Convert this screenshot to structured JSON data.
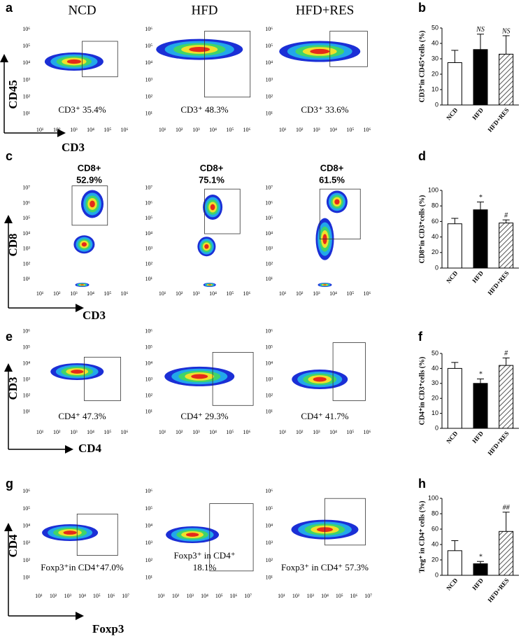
{
  "panels": [
    {
      "letter": "a",
      "groups": [
        "NCD",
        "HFD",
        "HFD+RES"
      ],
      "y_axis": "CD45",
      "x_axis": "CD3",
      "yticks": [
        "10¹",
        "10²",
        "10³",
        "10⁴",
        "10⁵",
        "10⁶"
      ],
      "xticks": [
        "10¹",
        "10²",
        "10³",
        "10⁴",
        "10⁵",
        "10⁶"
      ],
      "gates": [
        [
          "CD3⁺ 35.4%"
        ],
        [
          "CD3⁺ 48.3%"
        ],
        [
          "CD3⁺ 33.6%"
        ]
      ]
    },
    {
      "letter": "c",
      "y_axis": "CD8",
      "x_axis": "CD3",
      "yticks": [
        "10¹",
        "10²",
        "10³",
        "10⁴",
        "10⁵",
        "10⁶",
        "10⁷"
      ],
      "xticks": [
        "10¹",
        "10²",
        "10³",
        "10⁴",
        "10⁵",
        "10⁶"
      ],
      "gates": [
        [
          "CD8+",
          "52.9%"
        ],
        [
          "CD8+",
          "75.1%"
        ],
        [
          "CD8+",
          "61.5%"
        ]
      ]
    },
    {
      "letter": "e",
      "y_axis": "CD3",
      "x_axis": "CD4",
      "yticks": [
        "10¹",
        "10²",
        "10³",
        "10⁴",
        "10⁵",
        "10⁶"
      ],
      "xticks": [
        "10¹",
        "10²",
        "10³",
        "10⁴",
        "10⁵",
        "10⁶"
      ],
      "gates": [
        [
          "CD4⁺ 47.3%"
        ],
        [
          "CD4⁺ 29.3%"
        ],
        [
          "CD4⁺ 41.7%"
        ]
      ]
    },
    {
      "letter": "g",
      "y_axis": "CD4",
      "x_axis": "Foxp3",
      "yticks": [
        "10¹",
        "10²",
        "10³",
        "10⁴",
        "10⁵",
        "10⁶"
      ],
      "xticks": [
        "10¹",
        "10²",
        "10³",
        "10⁴",
        "10⁵",
        "10⁶",
        "10⁷"
      ],
      "gates": [
        [
          "Foxp3⁺in CD4⁺47.0%"
        ],
        [
          "Foxp3⁺ in CD4⁺",
          "18.1%"
        ],
        [
          "Foxp3⁺ in CD4⁺ 57.3%"
        ]
      ]
    }
  ],
  "chart_data": [
    {
      "type": "bar",
      "letter": "b",
      "ylabel": "CD3⁺in CD45⁺cells (%)",
      "categories": [
        "NCD",
        "HFD",
        "HFD+RES"
      ],
      "values": [
        27.5,
        36,
        33
      ],
      "errors": [
        8,
        10,
        12
      ],
      "annotations": [
        null,
        "NS",
        "NS"
      ],
      "colors": [
        "#ffffff",
        "#000000",
        "#ffffff"
      ],
      "hatch": [
        false,
        false,
        true
      ],
      "ylim": [
        0,
        50
      ],
      "yticks": [
        0,
        10,
        20,
        30,
        40,
        50
      ]
    },
    {
      "type": "bar",
      "letter": "d",
      "ylabel": "CD8⁺in CD3⁺cells (%)",
      "categories": [
        "NCD",
        "HFD",
        "HFD+RES"
      ],
      "values": [
        57,
        75,
        58
      ],
      "errors": [
        7,
        10,
        4
      ],
      "annotations": [
        null,
        "*",
        "#"
      ],
      "colors": [
        "#ffffff",
        "#000000",
        "#ffffff"
      ],
      "hatch": [
        false,
        false,
        true
      ],
      "ylim": [
        0,
        100
      ],
      "yticks": [
        0,
        20,
        40,
        60,
        80,
        100
      ]
    },
    {
      "type": "bar",
      "letter": "f",
      "ylabel": "CD4⁺in CD3⁺cells (%)",
      "categories": [
        "NCD",
        "HFD",
        "HFD+RES"
      ],
      "values": [
        40,
        30,
        42
      ],
      "errors": [
        4,
        3,
        5
      ],
      "annotations": [
        null,
        "*",
        "#"
      ],
      "colors": [
        "#ffffff",
        "#000000",
        "#ffffff"
      ],
      "hatch": [
        false,
        false,
        true
      ],
      "ylim": [
        0,
        50
      ],
      "yticks": [
        0,
        10,
        20,
        30,
        40,
        50
      ]
    },
    {
      "type": "bar",
      "letter": "h",
      "ylabel": "Treg⁺ in CD4⁺ cells (%)",
      "categories": [
        "NCD",
        "HFD",
        "HFD+RES"
      ],
      "values": [
        32,
        15,
        57
      ],
      "errors": [
        13,
        3,
        25
      ],
      "annotations": [
        null,
        "*",
        "##"
      ],
      "colors": [
        "#ffffff",
        "#000000",
        "#ffffff"
      ],
      "hatch": [
        false,
        false,
        true
      ],
      "ylim": [
        0,
        100
      ],
      "yticks": [
        0,
        20,
        40,
        60,
        80,
        100
      ]
    }
  ]
}
